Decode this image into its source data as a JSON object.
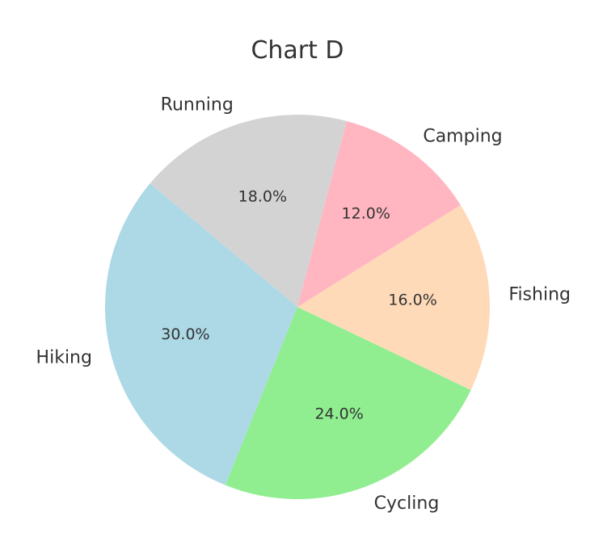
{
  "chart_data": {
    "type": "pie",
    "title": "Chart D",
    "categories": [
      "Hiking",
      "Cycling",
      "Fishing",
      "Camping",
      "Running"
    ],
    "values": [
      30.0,
      24.0,
      16.0,
      12.0,
      18.0
    ],
    "percent_labels": [
      "30.0%",
      "24.0%",
      "16.0%",
      "12.0%",
      "18.0%"
    ],
    "colors": [
      "#add8e6",
      "#90ee90",
      "#ffdab9",
      "#ffb6c1",
      "#d3d3d3"
    ],
    "start_angle_deg": 140,
    "direction": "counterclockwise",
    "legend": "none"
  }
}
